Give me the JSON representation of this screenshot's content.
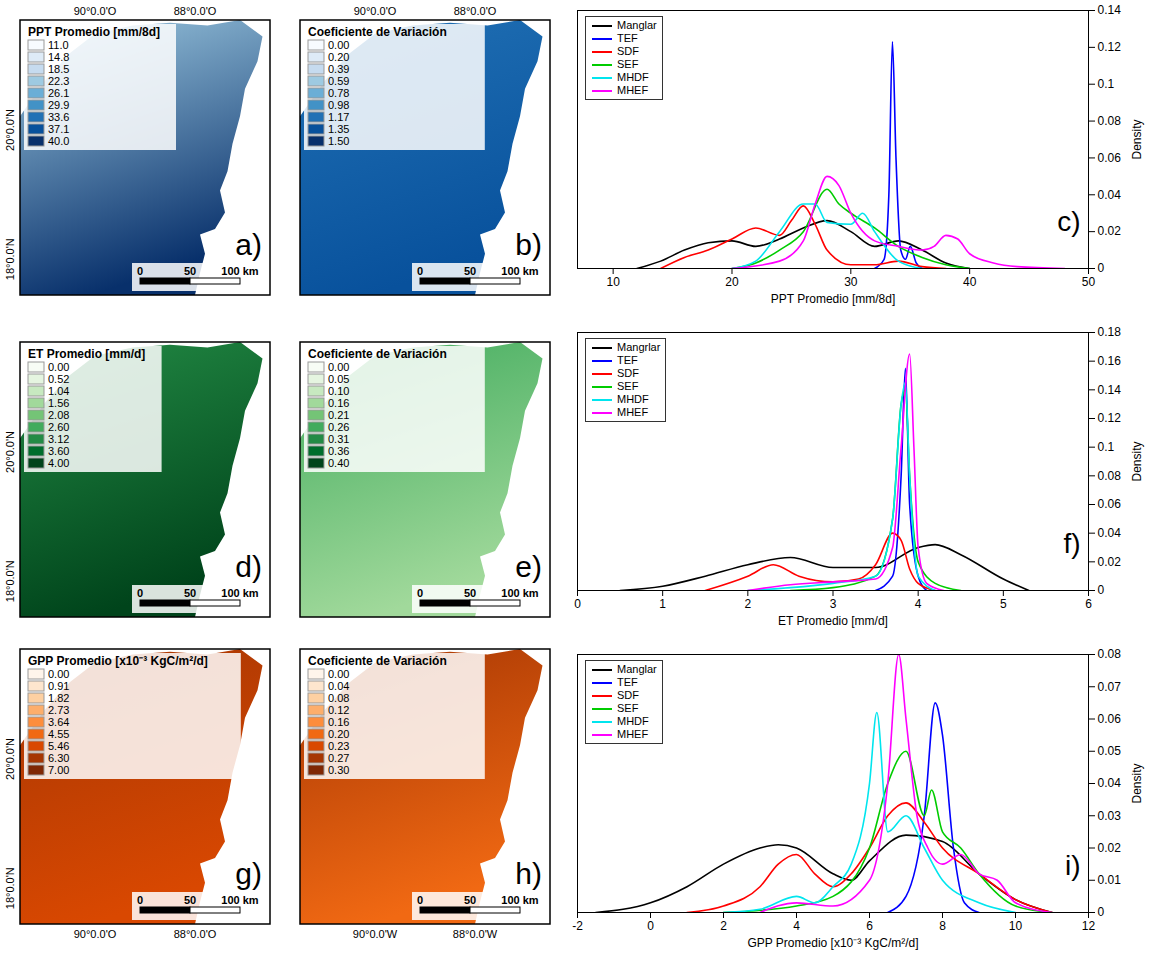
{
  "maps": [
    {
      "panel_label": "a)",
      "title": "PPT Promedio [mm/8d]",
      "top_labels": [
        "90°0.0'O",
        "88°0.0'O"
      ],
      "left_labels": [
        "20°0.0'N",
        "18°0.0'N"
      ],
      "colorbar": {
        "ticks": [
          {
            "value": 11,
            "label": "11.0"
          },
          14.8,
          18.5,
          22.3,
          26.1,
          29.9,
          33.6,
          37.1,
          {
            "value": 40,
            "label": "40.0"
          }
        ],
        "colors": [
          "#f7fbff",
          "#deebf7",
          "#c6dbef",
          "#9ecae1",
          "#6baed6",
          "#4292c6",
          "#2171b5",
          "#08519c",
          "#08306b"
        ]
      },
      "scale_bar": {
        "ticks": [
          0,
          50,
          100
        ],
        "unit": "km"
      }
    },
    {
      "panel_label": "b)",
      "title": "Coeficiente de Variación",
      "top_labels": [
        "90°0.0'O",
        "88°0.0'O"
      ],
      "colorbar": {
        "ticks": [
          {
            "value": 0,
            "label": "0.00"
          },
          {
            "value": 0.2,
            "label": "0.20"
          },
          0.39,
          0.59,
          0.78,
          0.98,
          1.17,
          1.35,
          {
            "value": 1.5,
            "label": "1.50"
          }
        ],
        "colors": [
          "#f7fbff",
          "#deebf7",
          "#c6dbef",
          "#9ecae1",
          "#6baed6",
          "#4292c6",
          "#2171b5",
          "#08519c",
          "#08306b"
        ]
      },
      "scale_bar": {
        "ticks": [
          0,
          50,
          100
        ],
        "unit": "km"
      }
    },
    {
      "panel_label": "d)",
      "title": "ET Promedio [mm/d]",
      "left_labels": [
        "20°0.0'N",
        "18°0.0'N"
      ],
      "colorbar": {
        "ticks": [
          {
            "value": 0,
            "label": "0.00"
          },
          0.52,
          1.04,
          1.56,
          2.08,
          {
            "value": 2.6,
            "label": "2.60"
          },
          3.12,
          {
            "value": 3.6,
            "label": "3.60"
          },
          {
            "value": 4,
            "label": "4.00"
          }
        ],
        "colors": [
          "#f7fcf5",
          "#e5f5e0",
          "#c7e9c0",
          "#a1d99b",
          "#74c476",
          "#41ab5d",
          "#238b45",
          "#006d2c",
          "#00441b"
        ]
      },
      "scale_bar": {
        "ticks": [
          0,
          50,
          100
        ],
        "unit": "km"
      }
    },
    {
      "panel_label": "e)",
      "title": "Coeficiente de Variación",
      "colorbar": {
        "ticks": [
          {
            "value": 0,
            "label": "0.00"
          },
          0.05,
          {
            "value": 0.1,
            "label": "0.10"
          },
          0.16,
          0.21,
          0.26,
          0.31,
          0.36,
          {
            "value": 0.4,
            "label": "0.40"
          }
        ],
        "colors": [
          "#f7fcf5",
          "#e5f5e0",
          "#c7e9c0",
          "#a1d99b",
          "#74c476",
          "#41ab5d",
          "#238b45",
          "#006d2c",
          "#00441b"
        ]
      },
      "scale_bar": {
        "ticks": [
          0,
          50,
          100
        ],
        "unit": "km"
      }
    },
    {
      "panel_label": "g)",
      "title": "GPP Promedio [x10⁻³ KgC/m²/d]",
      "left_labels": [
        "20°0.0'N",
        "18°0.0'N"
      ],
      "bottom_labels": [
        "90°0.0'O",
        "88°0.0'O"
      ],
      "colorbar": {
        "ticks": [
          {
            "value": 0,
            "label": "0.00"
          },
          0.91,
          1.82,
          2.73,
          3.64,
          4.55,
          5.46,
          {
            "value": 6.3,
            "label": "6.30"
          },
          {
            "value": 7,
            "label": "7.00"
          }
        ],
        "colors": [
          "#fff5eb",
          "#fee6ce",
          "#fdd0a2",
          "#fdae6b",
          "#fd8d3c",
          "#f16913",
          "#d94801",
          "#a63603",
          "#7f2704"
        ]
      },
      "scale_bar": {
        "ticks": [
          0,
          50,
          100
        ],
        "unit": "km"
      }
    },
    {
      "panel_label": "h)",
      "title": "Coeficiente de Variación",
      "bottom_labels": [
        "90°0.0'W",
        "88°0.0'W"
      ],
      "colorbar": {
        "ticks": [
          {
            "value": 0,
            "label": "0.00"
          },
          0.04,
          0.08,
          0.12,
          0.16,
          {
            "value": 0.2,
            "label": "0.20"
          },
          0.23,
          0.27,
          {
            "value": 0.3,
            "label": "0.30"
          }
        ],
        "colors": [
          "#fff5eb",
          "#fee6ce",
          "#fdd0a2",
          "#fdae6b",
          "#fd8d3c",
          "#f16913",
          "#d94801",
          "#a63603",
          "#7f2704"
        ]
      },
      "scale_bar": {
        "ticks": [
          0,
          50,
          100
        ],
        "unit": "km"
      }
    }
  ],
  "chart_data": [
    {
      "type": "line",
      "panel_label": "c)",
      "x_label": "PPT Promedio [mm/8d]",
      "y_label": "Density",
      "xlim": [
        7,
        50
      ],
      "xticks": [
        10,
        20,
        30,
        40,
        50
      ],
      "ylim": [
        0,
        0.14
      ],
      "yticks": [
        0,
        0.02,
        0.04,
        0.06,
        0.08,
        0.1,
        0.12,
        0.14
      ],
      "legend": "upper left",
      "series": [
        {
          "name": "Manglar",
          "color": "#000000",
          "x": [
            12,
            14,
            16,
            18,
            20,
            22,
            24,
            26,
            28,
            30,
            32,
            34,
            36,
            38,
            40
          ],
          "values": [
            0,
            0.004,
            0.01,
            0.014,
            0.015,
            0.012,
            0.016,
            0.022,
            0.026,
            0.02,
            0.012,
            0.015,
            0.01,
            0.003,
            0
          ]
        },
        {
          "name": "TEF",
          "color": "#0000ff",
          "x": [
            32,
            32.8,
            33.2,
            33.5,
            33.8,
            34.2,
            34.6,
            35,
            35.5,
            36
          ],
          "values": [
            0,
            0.005,
            0.04,
            0.123,
            0.06,
            0.01,
            0.005,
            0.012,
            0.003,
            0
          ]
        },
        {
          "name": "SDF",
          "color": "#ff0000",
          "x": [
            14,
            16,
            18,
            20,
            22,
            24,
            25,
            26,
            27,
            28,
            30,
            32,
            34,
            36,
            38
          ],
          "values": [
            0,
            0.006,
            0.01,
            0.016,
            0.022,
            0.018,
            0.026,
            0.034,
            0.024,
            0.01,
            0.002,
            0.002,
            0.004,
            0.001,
            0
          ]
        },
        {
          "name": "SEF",
          "color": "#00cc00",
          "x": [
            20,
            22,
            24,
            26,
            28,
            29,
            30,
            32,
            34,
            36,
            38,
            40
          ],
          "values": [
            0,
            0.003,
            0.01,
            0.02,
            0.043,
            0.035,
            0.03,
            0.022,
            0.012,
            0.006,
            0.002,
            0
          ]
        },
        {
          "name": "MHDF",
          "color": "#00e5ee",
          "x": [
            20,
            22,
            24,
            26,
            27,
            28,
            30,
            31,
            32,
            34,
            36
          ],
          "values": [
            0,
            0.004,
            0.02,
            0.035,
            0.035,
            0.025,
            0.024,
            0.03,
            0.02,
            0.004,
            0
          ]
        },
        {
          "name": "MHEF",
          "color": "#ff00ff",
          "x": [
            20,
            24,
            26,
            27,
            28,
            29,
            30,
            32,
            34,
            36,
            37,
            38,
            39,
            40,
            42,
            44,
            48
          ],
          "values": [
            0,
            0.004,
            0.015,
            0.035,
            0.05,
            0.045,
            0.03,
            0.015,
            0.012,
            0.01,
            0.012,
            0.018,
            0.016,
            0.008,
            0.003,
            0.001,
            0
          ]
        }
      ]
    },
    {
      "type": "line",
      "panel_label": "f)",
      "x_label": "ET Promedio [mm/d]",
      "y_label": "Density",
      "xlim": [
        0,
        6
      ],
      "xticks": [
        0,
        1,
        2,
        3,
        4,
        5,
        6
      ],
      "ylim": [
        0,
        0.18
      ],
      "yticks": [
        0,
        0.02,
        0.04,
        0.06,
        0.08,
        0.1,
        0.12,
        0.14,
        0.16,
        0.18
      ],
      "legend": "upper left",
      "series": [
        {
          "name": "Mangrlar",
          "color": "#000000",
          "x": [
            0.5,
            1,
            1.5,
            2,
            2.5,
            3,
            3.5,
            4,
            4.2,
            4.5,
            5,
            5.3
          ],
          "values": [
            0,
            0.003,
            0.01,
            0.018,
            0.023,
            0.016,
            0.016,
            0.03,
            0.032,
            0.025,
            0.008,
            0
          ]
        },
        {
          "name": "TEF",
          "color": "#0000ff",
          "x": [
            3.5,
            3.7,
            3.8,
            3.85,
            3.9,
            4,
            4.1
          ],
          "values": [
            0,
            0.01,
            0.08,
            0.155,
            0.06,
            0.01,
            0
          ]
        },
        {
          "name": "SDF",
          "color": "#ff0000",
          "x": [
            1.5,
            2,
            2.3,
            2.6,
            3,
            3.3,
            3.5,
            3.7,
            3.8,
            3.9,
            4,
            4.2
          ],
          "values": [
            0,
            0.01,
            0.018,
            0.01,
            0.006,
            0.008,
            0.018,
            0.04,
            0.035,
            0.015,
            0.005,
            0
          ]
        },
        {
          "name": "SEF",
          "color": "#00cc00",
          "x": [
            2.5,
            3,
            3.5,
            3.7,
            3.8,
            3.85,
            3.9,
            4,
            4.2,
            4.5
          ],
          "values": [
            0,
            0.002,
            0.01,
            0.05,
            0.13,
            0.14,
            0.08,
            0.02,
            0.005,
            0
          ]
        },
        {
          "name": "MHDF",
          "color": "#00e5ee",
          "x": [
            2,
            2.5,
            3,
            3.5,
            3.7,
            3.8,
            3.85,
            3.9,
            4,
            4.2
          ],
          "values": [
            0,
            0.002,
            0.005,
            0.01,
            0.05,
            0.13,
            0.145,
            0.08,
            0.01,
            0
          ]
        },
        {
          "name": "MHEF",
          "color": "#ff00ff",
          "x": [
            2,
            2.5,
            3,
            3.5,
            3.7,
            3.8,
            3.9,
            3.95,
            4,
            4.1,
            4.3
          ],
          "values": [
            0,
            0.004,
            0.006,
            0.008,
            0.03,
            0.1,
            0.165,
            0.1,
            0.03,
            0.005,
            0
          ]
        }
      ]
    },
    {
      "type": "line",
      "panel_label": "i)",
      "x_label": "GPP Promedio [x10⁻³ KgC/m²/d]",
      "y_label": "Density",
      "xlim": [
        -2,
        12
      ],
      "xticks": [
        -2,
        0,
        2,
        4,
        6,
        8,
        10,
        12
      ],
      "ylim": [
        0,
        0.08
      ],
      "yticks": [
        0,
        0.01,
        0.02,
        0.03,
        0.04,
        0.05,
        0.06,
        0.07,
        0.08
      ],
      "legend": "upper left",
      "series": [
        {
          "name": "Manglar",
          "color": "#000000",
          "x": [
            -1.5,
            0,
            1,
            2,
            3,
            3.5,
            4,
            5,
            5.5,
            6,
            7,
            8,
            9,
            10,
            11
          ],
          "values": [
            0,
            0.003,
            0.008,
            0.015,
            0.02,
            0.021,
            0.02,
            0.012,
            0.01,
            0.016,
            0.024,
            0.022,
            0.012,
            0.004,
            0
          ]
        },
        {
          "name": "TEF",
          "color": "#0000ff",
          "x": [
            6.5,
            7,
            7.5,
            7.8,
            8,
            8.3,
            8.6,
            9
          ],
          "values": [
            0,
            0.005,
            0.03,
            0.065,
            0.055,
            0.02,
            0.003,
            0
          ]
        },
        {
          "name": "SDF",
          "color": "#ff0000",
          "x": [
            1,
            2,
            3,
            3.5,
            4,
            4.5,
            5,
            5.5,
            6,
            6.5,
            7,
            7.5,
            8,
            9,
            10,
            11
          ],
          "values": [
            0,
            0.002,
            0.008,
            0.015,
            0.018,
            0.012,
            0.008,
            0.012,
            0.02,
            0.03,
            0.034,
            0.028,
            0.02,
            0.012,
            0.004,
            0
          ]
        },
        {
          "name": "SEF",
          "color": "#00cc00",
          "x": [
            2,
            4,
            5,
            6,
            6.5,
            7,
            7.5,
            7.7,
            8,
            8.5,
            9,
            10,
            11
          ],
          "values": [
            0,
            0.002,
            0.005,
            0.02,
            0.04,
            0.05,
            0.03,
            0.038,
            0.025,
            0.02,
            0.012,
            0.002,
            0
          ]
        },
        {
          "name": "MHDF",
          "color": "#00e5ee",
          "x": [
            2,
            3,
            4,
            4.5,
            5,
            5.5,
            6,
            6.2,
            6.5,
            7,
            7.5,
            8,
            9,
            10
          ],
          "values": [
            0,
            0.001,
            0.005,
            0.003,
            0.008,
            0.015,
            0.04,
            0.062,
            0.025,
            0.03,
            0.02,
            0.01,
            0.003,
            0
          ]
        },
        {
          "name": "MHEF",
          "color": "#ff00ff",
          "x": [
            3,
            4,
            5,
            6,
            6.5,
            6.8,
            7,
            7.3,
            7.6,
            8,
            8.5,
            9,
            9.5,
            10,
            11
          ],
          "values": [
            0,
            0.003,
            0.002,
            0.01,
            0.04,
            0.08,
            0.06,
            0.03,
            0.02,
            0.015,
            0.018,
            0.012,
            0.01,
            0.003,
            0
          ]
        }
      ]
    }
  ]
}
